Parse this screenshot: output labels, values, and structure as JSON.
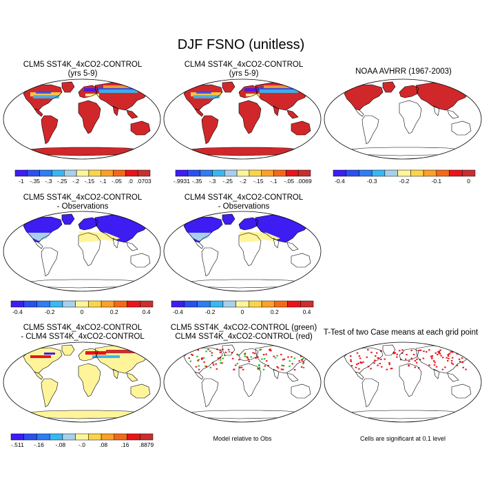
{
  "title": "DJF FSNO (unitless)",
  "colors": {
    "bar_model": [
      "#3d1df2",
      "#2a50f0",
      "#2f7df2",
      "#3ab6f2",
      "#a8d0ea",
      "#fff49a",
      "#fcd44a",
      "#fba02a",
      "#f56818",
      "#e8141a",
      "#c92f2f"
    ],
    "bar_obs": [
      "#3d1df2",
      "#2a50f0",
      "#2f7df2",
      "#3ab6f2",
      "#a8d0ea",
      "#fff49a",
      "#fcd44a",
      "#fba02a",
      "#f56818",
      "#e8141a",
      "#c92f2f"
    ],
    "coast": "#000000"
  },
  "chart_data": [
    {
      "type": "heatmap",
      "title": "CLM5 SST4K_4xCO2-CONTROL",
      "subtitle": "(yrs 5-9)",
      "colorbar_ticks": [
        "-1",
        "-.35",
        "-.3",
        "-.25",
        "-.2",
        "-.15",
        "-.1",
        "-.05",
        ".0",
        ".0703"
      ]
    },
    {
      "type": "heatmap",
      "title": "CLM4 SST4K_4xCO2-CONTROL",
      "subtitle": "(yrs 5-9)",
      "colorbar_ticks": [
        "-.9931",
        "-.35",
        "-.3",
        "-.25",
        "-.2",
        "-.15",
        "-.1",
        "-.05",
        ".0069"
      ]
    },
    {
      "type": "heatmap",
      "title": "NOAA AVHRR (1967-2003)",
      "subtitle": "",
      "colorbar_ticks": [
        "-0.4",
        "-0.3",
        "-0.2",
        "-0.1",
        "0"
      ]
    },
    {
      "type": "heatmap",
      "title": "CLM5 SST4K_4xCO2-CONTROL",
      "subtitle": "- Observations",
      "colorbar_ticks": [
        "-0.4",
        "-0.2",
        "0",
        "0.2",
        "0.4"
      ]
    },
    {
      "type": "heatmap",
      "title": "CLM4 SST4K_4xCO2-CONTROL",
      "subtitle": "- Observations",
      "colorbar_ticks": [
        "-0.4",
        "-0.2",
        "0",
        "0.2",
        "0.4"
      ]
    },
    {
      "type": "heatmap",
      "title": "CLM5 SST4K_4xCO2-CONTROL",
      "subtitle": "- CLM4 SST4K_4xCO2-CONTROL",
      "colorbar_ticks": [
        "-.511",
        "-.16",
        "-.08",
        "-.0",
        ".08",
        ".16",
        ".8879"
      ]
    },
    {
      "type": "heatmap",
      "title": "CLM5 SST4K_4xCO2-CONTROL (green)",
      "subtitle": "CLM4 SST4K_4xCO2-CONTROL (red)",
      "caption": "Model relative to Obs"
    },
    {
      "type": "heatmap",
      "title": "T-Test of two Case means at each grid point",
      "subtitle": "",
      "caption": "Cells are significant at 0.1 level"
    }
  ]
}
